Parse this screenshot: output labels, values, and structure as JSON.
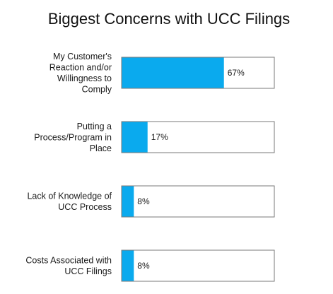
{
  "chart_data": {
    "type": "bar",
    "orientation": "horizontal",
    "title": "Biggest Concerns with UCC Filings",
    "categories": [
      [
        "My Customer's",
        "Reaction and/or",
        "Willingness to",
        "Comply"
      ],
      [
        "Putting a",
        "Process/Program in",
        "Place"
      ],
      [
        "Lack of Knowledge of",
        "UCC Process"
      ],
      [
        "Costs Associated with",
        "UCC Filings"
      ]
    ],
    "values": [
      67,
      17,
      8,
      8
    ],
    "value_labels": [
      "67%",
      "17%",
      "8%",
      "8%"
    ],
    "xlim": [
      0,
      100
    ],
    "unit": "%",
    "grid": false,
    "legend": "none",
    "colors": {
      "bar": "#0aaaee",
      "track_border": "#7a7a7a",
      "track_fill": "#ffffff",
      "text": "#1a1a1a"
    }
  }
}
